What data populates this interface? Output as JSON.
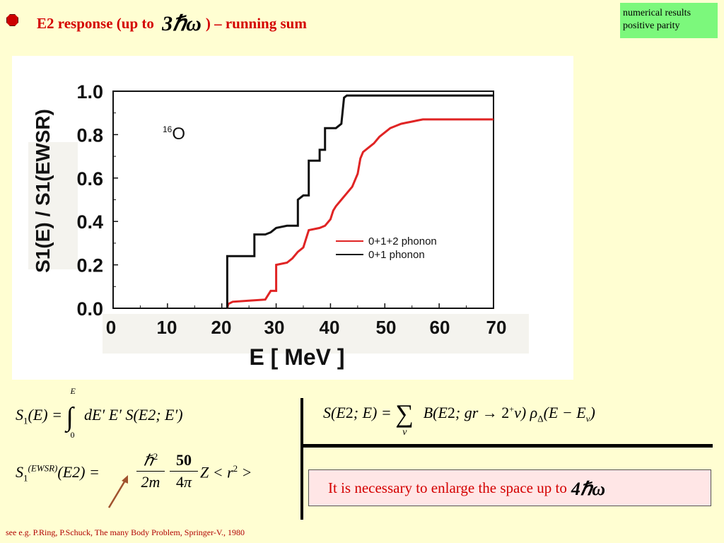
{
  "slide": {
    "title_prefix": "E2 response (up to ",
    "title_symbol": "3ℏω",
    "title_suffix": ") – running sum",
    "note_line1": "numerical results",
    "note_line2": "positive parity",
    "footnote": "see e.g. P.Ring, P.Schuck, The many Body Problem, Springer-V., 1980",
    "message": "It is necessary to enlarge the space up to",
    "message_symbol": "4ℏω"
  },
  "formulas": {
    "running_sum": "S₁(E) = ∫₀ᴱ dE′ E′ S(E2; E′)",
    "ewsr": "S₁⁽ᴱᵂˢᴿ⁾(E2) = ℏ²/2m · 50/4π · Z < r² >",
    "strength": "S(E2; E) = Σν B(E2; gr → 2⁺ν) ρΔ(E − Eν)"
  },
  "colors": {
    "background": "#fffed2",
    "title_red": "#d40000",
    "note_green": "#7cf87c",
    "black_series": "#111111",
    "red_series": "#e02424"
  },
  "chart_data": {
    "type": "line",
    "title": "",
    "annotation": "16O",
    "xlabel": "E [ MeV ]",
    "ylabel": "S1(E) / S1(EWSR)",
    "xlim": [
      0,
      70
    ],
    "ylim": [
      0,
      1.0
    ],
    "xticks": [
      "0",
      "10",
      "20",
      "30",
      "40",
      "50",
      "60",
      "70"
    ],
    "yticks": [
      "0.0",
      "0.2",
      "0.4",
      "0.6",
      "0.8",
      "1.0"
    ],
    "legend_position": "bottom-right",
    "series": [
      {
        "name": "0+1+2 phonon",
        "color": "#e02424",
        "points": [
          [
            21,
            0
          ],
          [
            21.2,
            0.02
          ],
          [
            22,
            0.03
          ],
          [
            25,
            0.035
          ],
          [
            28,
            0.04
          ],
          [
            28.5,
            0.06
          ],
          [
            29,
            0.08
          ],
          [
            30,
            0.08
          ],
          [
            30,
            0.2
          ],
          [
            32,
            0.21
          ],
          [
            33,
            0.23
          ],
          [
            34,
            0.26
          ],
          [
            35,
            0.28
          ],
          [
            36,
            0.36
          ],
          [
            38,
            0.37
          ],
          [
            39,
            0.38
          ],
          [
            40,
            0.41
          ],
          [
            40.5,
            0.45
          ],
          [
            41,
            0.47
          ],
          [
            42,
            0.5
          ],
          [
            43,
            0.53
          ],
          [
            44,
            0.56
          ],
          [
            45,
            0.62
          ],
          [
            45.5,
            0.69
          ],
          [
            46,
            0.72
          ],
          [
            47,
            0.74
          ],
          [
            48,
            0.76
          ],
          [
            49,
            0.79
          ],
          [
            50,
            0.81
          ],
          [
            51,
            0.83
          ],
          [
            52,
            0.84
          ],
          [
            53,
            0.85
          ],
          [
            54,
            0.855
          ],
          [
            55,
            0.86
          ],
          [
            56,
            0.865
          ],
          [
            57,
            0.87
          ],
          [
            60,
            0.87
          ],
          [
            70,
            0.87
          ]
        ]
      },
      {
        "name": "0+1 phonon",
        "color": "#111111",
        "points": [
          [
            21,
            0
          ],
          [
            21,
            0.24
          ],
          [
            23,
            0.24
          ],
          [
            26,
            0.24
          ],
          [
            26,
            0.34
          ],
          [
            28,
            0.34
          ],
          [
            29,
            0.35
          ],
          [
            30,
            0.37
          ],
          [
            32,
            0.38
          ],
          [
            34,
            0.38
          ],
          [
            34,
            0.5
          ],
          [
            35,
            0.52
          ],
          [
            36,
            0.52
          ],
          [
            36,
            0.68
          ],
          [
            38,
            0.68
          ],
          [
            38,
            0.73
          ],
          [
            39,
            0.73
          ],
          [
            39,
            0.83
          ],
          [
            41,
            0.83
          ],
          [
            42,
            0.85
          ],
          [
            42.5,
            0.97
          ],
          [
            43,
            0.98
          ],
          [
            50,
            0.98
          ],
          [
            60,
            0.98
          ],
          [
            70,
            0.98
          ]
        ]
      }
    ]
  }
}
